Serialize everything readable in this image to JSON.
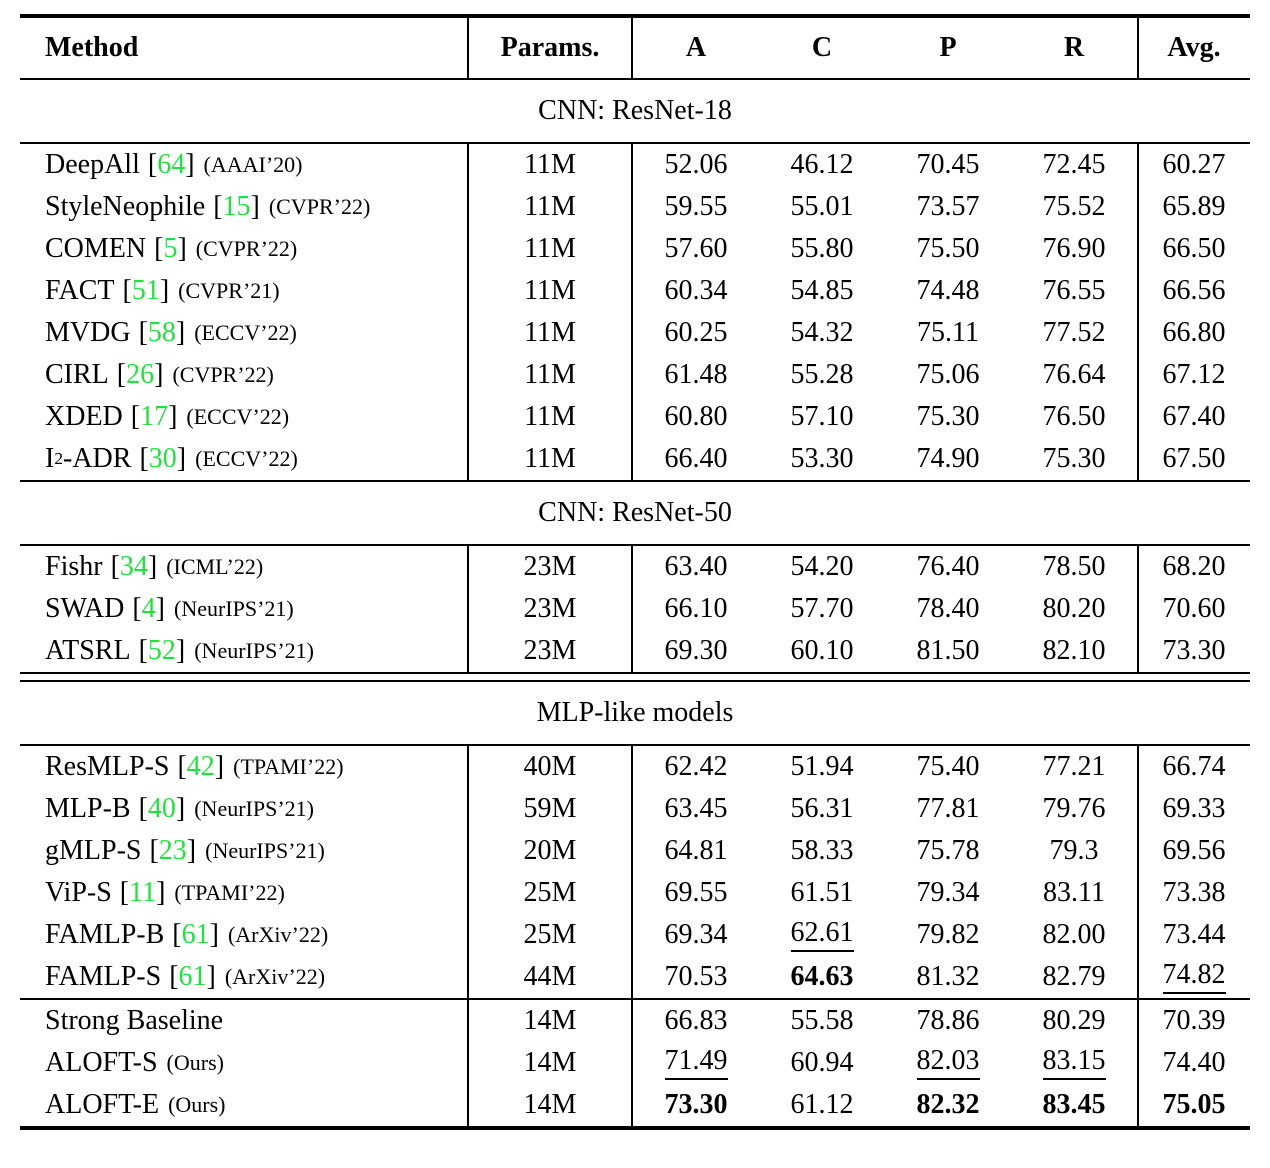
{
  "colors": {
    "citation": "#1fe33b",
    "ink": "#000000",
    "paper": "#ffffff"
  },
  "table": {
    "bracket_open": "[",
    "bracket_close": "]",
    "columns": [
      "Method",
      "Params.",
      "A",
      "C",
      "P",
      "R",
      "Avg."
    ],
    "sections": [
      {
        "title": "CNN: ResNet-18",
        "divider_after": "single",
        "rows": [
          {
            "method": "DeepAll",
            "cite": "64",
            "venue": "(AAAI’20)",
            "params": "11M",
            "cells": [
              {
                "v": "52.06"
              },
              {
                "v": "46.12"
              },
              {
                "v": "70.45"
              },
              {
                "v": "72.45"
              },
              {
                "v": "60.27"
              }
            ]
          },
          {
            "method": "StyleNeophile",
            "cite": "15",
            "venue": "(CVPR’22)",
            "params": "11M",
            "cells": [
              {
                "v": "59.55"
              },
              {
                "v": "55.01"
              },
              {
                "v": "73.57"
              },
              {
                "v": "75.52"
              },
              {
                "v": "65.89"
              }
            ]
          },
          {
            "method": "COMEN",
            "cite": "5",
            "venue": "(CVPR’22)",
            "params": "11M",
            "cells": [
              {
                "v": "57.60"
              },
              {
                "v": "55.80"
              },
              {
                "v": "75.50"
              },
              {
                "v": "76.90"
              },
              {
                "v": "66.50"
              }
            ]
          },
          {
            "method": "FACT",
            "cite": "51",
            "venue": "(CVPR’21)",
            "params": "11M",
            "cells": [
              {
                "v": "60.34"
              },
              {
                "v": "54.85"
              },
              {
                "v": "74.48"
              },
              {
                "v": "76.55"
              },
              {
                "v": "66.56"
              }
            ]
          },
          {
            "method": "MVDG",
            "cite": "58",
            "venue": "(ECCV’22)",
            "params": "11M",
            "cells": [
              {
                "v": "60.25"
              },
              {
                "v": "54.32"
              },
              {
                "v": "75.11"
              },
              {
                "v": "77.52"
              },
              {
                "v": "66.80"
              }
            ]
          },
          {
            "method": "CIRL",
            "cite": "26",
            "venue": "(CVPR’22)",
            "params": "11M",
            "cells": [
              {
                "v": "61.48"
              },
              {
                "v": "55.28"
              },
              {
                "v": "75.06"
              },
              {
                "v": "76.64"
              },
              {
                "v": "67.12"
              }
            ]
          },
          {
            "method": "XDED",
            "cite": "17",
            "venue": "(ECCV’22)",
            "params": "11M",
            "cells": [
              {
                "v": "60.80"
              },
              {
                "v": "57.10"
              },
              {
                "v": "75.30"
              },
              {
                "v": "76.50"
              },
              {
                "v": "67.40"
              }
            ]
          },
          {
            "method": "I",
            "sup": "2",
            "post": "-ADR",
            "cite": "30",
            "venue": "(ECCV’22)",
            "params": "11M",
            "cells": [
              {
                "v": "66.40"
              },
              {
                "v": "53.30"
              },
              {
                "v": "74.90"
              },
              {
                "v": "75.30"
              },
              {
                "v": "67.50"
              }
            ]
          }
        ]
      },
      {
        "title": "CNN: ResNet-50",
        "divider_after": "double",
        "rows": [
          {
            "method": "Fishr",
            "cite": "34",
            "venue": "(ICML’22)",
            "params": "23M",
            "cells": [
              {
                "v": "63.40"
              },
              {
                "v": "54.20"
              },
              {
                "v": "76.40"
              },
              {
                "v": "78.50"
              },
              {
                "v": "68.20"
              }
            ]
          },
          {
            "method": "SWAD",
            "cite": "4",
            "venue": "(NeurIPS’21)",
            "params": "23M",
            "cells": [
              {
                "v": "66.10"
              },
              {
                "v": "57.70"
              },
              {
                "v": "78.40"
              },
              {
                "v": "80.20"
              },
              {
                "v": "70.60"
              }
            ]
          },
          {
            "method": "ATSRL",
            "cite": "52",
            "venue": "(NeurIPS’21)",
            "params": "23M",
            "cells": [
              {
                "v": "69.30"
              },
              {
                "v": "60.10"
              },
              {
                "v": "81.50"
              },
              {
                "v": "82.10"
              },
              {
                "v": "73.30"
              }
            ]
          }
        ]
      },
      {
        "title": "MLP-like models",
        "divider_after": "single",
        "rows": [
          {
            "method": "ResMLP-S",
            "cite": "42",
            "venue": "(TPAMI’22)",
            "params": "40M",
            "cells": [
              {
                "v": "62.42"
              },
              {
                "v": "51.94"
              },
              {
                "v": "75.40"
              },
              {
                "v": "77.21"
              },
              {
                "v": "66.74"
              }
            ]
          },
          {
            "method": "MLP-B",
            "cite": "40",
            "venue": "(NeurIPS’21)",
            "params": "59M",
            "cells": [
              {
                "v": "63.45"
              },
              {
                "v": "56.31"
              },
              {
                "v": "77.81"
              },
              {
                "v": "79.76"
              },
              {
                "v": "69.33"
              }
            ]
          },
          {
            "method": "gMLP-S",
            "cite": "23",
            "venue": "(NeurIPS’21)",
            "params": "20M",
            "cells": [
              {
                "v": "64.81"
              },
              {
                "v": "58.33"
              },
              {
                "v": "75.78"
              },
              {
                "v": "79.3"
              },
              {
                "v": "69.56"
              }
            ]
          },
          {
            "method": "ViP-S",
            "cite": "11",
            "venue": "(TPAMI’22)",
            "params": "25M",
            "cells": [
              {
                "v": "69.55"
              },
              {
                "v": "61.51"
              },
              {
                "v": "79.34"
              },
              {
                "v": "83.11"
              },
              {
                "v": "73.38"
              }
            ]
          },
          {
            "method": "FAMLP-B",
            "cite": "61",
            "venue": "(ArXiv’22)",
            "params": "25M",
            "cells": [
              {
                "v": "69.34"
              },
              {
                "v": "62.61",
                "u": true
              },
              {
                "v": "79.82"
              },
              {
                "v": "82.00"
              },
              {
                "v": "73.44"
              }
            ]
          },
          {
            "method": "FAMLP-S",
            "cite": "61",
            "venue": "(ArXiv’22)",
            "params": "44M",
            "cells": [
              {
                "v": "70.53"
              },
              {
                "v": "64.63",
                "b": true
              },
              {
                "v": "81.32"
              },
              {
                "v": "82.79"
              },
              {
                "v": "74.82",
                "u": true
              }
            ]
          }
        ]
      },
      {
        "title": "",
        "divider_after": "thick",
        "rows": [
          {
            "method": "Strong Baseline",
            "params": "14M",
            "cells": [
              {
                "v": "66.83"
              },
              {
                "v": "55.58"
              },
              {
                "v": "78.86"
              },
              {
                "v": "80.29"
              },
              {
                "v": "70.39"
              }
            ]
          },
          {
            "method": "ALOFT-S",
            "venue": "(Ours)",
            "params": "14M",
            "cells": [
              {
                "v": "71.49",
                "u": true
              },
              {
                "v": "60.94"
              },
              {
                "v": "82.03",
                "u": true
              },
              {
                "v": "83.15",
                "u": true
              },
              {
                "v": "74.40"
              }
            ]
          },
          {
            "method": "ALOFT-E",
            "venue": "(Ours)",
            "params": "14M",
            "cells": [
              {
                "v": "73.30",
                "b": true
              },
              {
                "v": "61.12"
              },
              {
                "v": "82.32",
                "b": true
              },
              {
                "v": "83.45",
                "b": true
              },
              {
                "v": "75.05",
                "b": true
              }
            ]
          }
        ]
      }
    ]
  }
}
